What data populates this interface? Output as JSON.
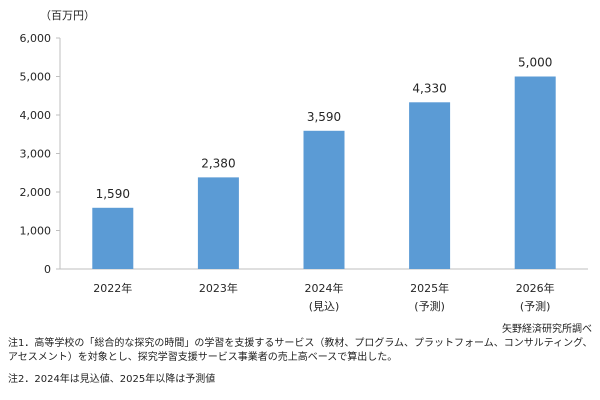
{
  "chart_data": {
    "type": "bar",
    "unit_label": "（百万円）",
    "categories": [
      "2022年",
      "2023年",
      "2024年",
      "2025年",
      "2026年"
    ],
    "category_sublabels": [
      "",
      "",
      "(見込)",
      "(予測)",
      "(予測)"
    ],
    "values": [
      1590,
      2380,
      3590,
      4330,
      5000
    ],
    "data_labels": [
      "1,590",
      "2,380",
      "3,590",
      "4,330",
      "5,000"
    ],
    "ylim": [
      0,
      6000
    ],
    "yticks": [
      0,
      1000,
      2000,
      3000,
      4000,
      5000,
      6000
    ],
    "ytick_labels": [
      "0",
      "1,000",
      "2,000",
      "3,000",
      "4,000",
      "5,000",
      "6,000"
    ],
    "bar_color": "#5B9BD5",
    "grid": false,
    "legend": "none"
  },
  "source": "矢野経済研究所調べ",
  "notes": [
    "注1．高等学校の「総合的な探究の時間」の学習を支援するサービス（教材、プログラム、プラットフォーム、コンサルティング、アセスメント）を対象とし、探究学習支援サービス事業者の売上高ベースで算出した。",
    "注2．2024年は見込値、2025年以降は予測値"
  ]
}
